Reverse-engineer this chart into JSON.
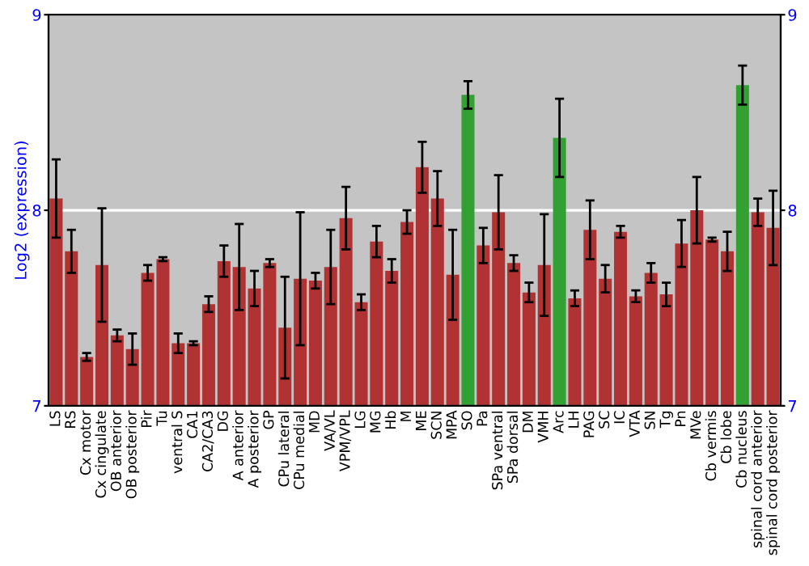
{
  "chart_data": {
    "type": "bar",
    "ylabel": "Log2 (expression)",
    "categories": [
      "LS",
      "RS",
      "Cx motor",
      "Cx cingulate",
      "OB anterior",
      "OB posterior",
      "Pir",
      "Tu",
      "ventral S",
      "CA1",
      "CA2/CA3",
      "DG",
      "A anterior",
      "A posterior",
      "GP",
      "CPu lateral",
      "CPu medial",
      "MD",
      "VA/VL",
      "VPM/VPL",
      "LG",
      "MG",
      "Hb",
      "M",
      "ME",
      "SCN",
      "MPA",
      "SO",
      "Pa",
      "SPa ventral",
      "SPa dorsal",
      "DM",
      "VMH",
      "Arc",
      "LH",
      "PAG",
      "SC",
      "IC",
      "VTA",
      "SN",
      "Tg",
      "Pn",
      "MVe",
      "Cb vermis",
      "Cb lobe",
      "Cb nucleus",
      "spinal cord anterior",
      "spinal cord posterior"
    ],
    "values": [
      8.06,
      7.79,
      7.25,
      7.72,
      7.36,
      7.29,
      7.68,
      7.75,
      7.32,
      7.32,
      7.52,
      7.74,
      7.71,
      7.6,
      7.73,
      7.4,
      7.65,
      7.64,
      7.71,
      7.96,
      7.53,
      7.84,
      7.69,
      7.94,
      8.22,
      8.06,
      7.67,
      8.59,
      7.82,
      7.99,
      7.73,
      7.58,
      7.72,
      8.37,
      7.55,
      7.9,
      7.65,
      7.89,
      7.56,
      7.68,
      7.57,
      7.83,
      8.0,
      7.85,
      7.79,
      8.64,
      7.99,
      7.91
    ],
    "errors": [
      0.2,
      0.11,
      0.02,
      0.29,
      0.03,
      0.08,
      0.04,
      0.01,
      0.05,
      0.01,
      0.04,
      0.08,
      0.22,
      0.09,
      0.02,
      0.26,
      0.34,
      0.04,
      0.19,
      0.16,
      0.04,
      0.08,
      0.06,
      0.06,
      0.13,
      0.14,
      0.23,
      0.07,
      0.09,
      0.19,
      0.04,
      0.05,
      0.26,
      0.2,
      0.04,
      0.15,
      0.07,
      0.03,
      0.03,
      0.05,
      0.06,
      0.12,
      0.17,
      0.01,
      0.1,
      0.1,
      0.07,
      0.19
    ],
    "colors": [
      "#b03232",
      "#b03232",
      "#b03232",
      "#b03232",
      "#b03232",
      "#b03232",
      "#b03232",
      "#b03232",
      "#b03232",
      "#b03232",
      "#b03232",
      "#b03232",
      "#b03232",
      "#b03232",
      "#b03232",
      "#b03232",
      "#b03232",
      "#b03232",
      "#b03232",
      "#b03232",
      "#b03232",
      "#b03232",
      "#b03232",
      "#b03232",
      "#b03232",
      "#b03232",
      "#b03232",
      "#32a032",
      "#b03232",
      "#b03232",
      "#b03232",
      "#b03232",
      "#b03232",
      "#32a032",
      "#b03232",
      "#b03232",
      "#b03232",
      "#b03232",
      "#b03232",
      "#b03232",
      "#b03232",
      "#b03232",
      "#b03232",
      "#b03232",
      "#b03232",
      "#32a032",
      "#b03232",
      "#b03232"
    ],
    "ylim": [
      7,
      9
    ],
    "yticks": [
      7,
      8,
      9
    ],
    "y2lim": [
      7,
      9
    ],
    "y2ticks": [
      7,
      8,
      9
    ],
    "grid": "y"
  }
}
